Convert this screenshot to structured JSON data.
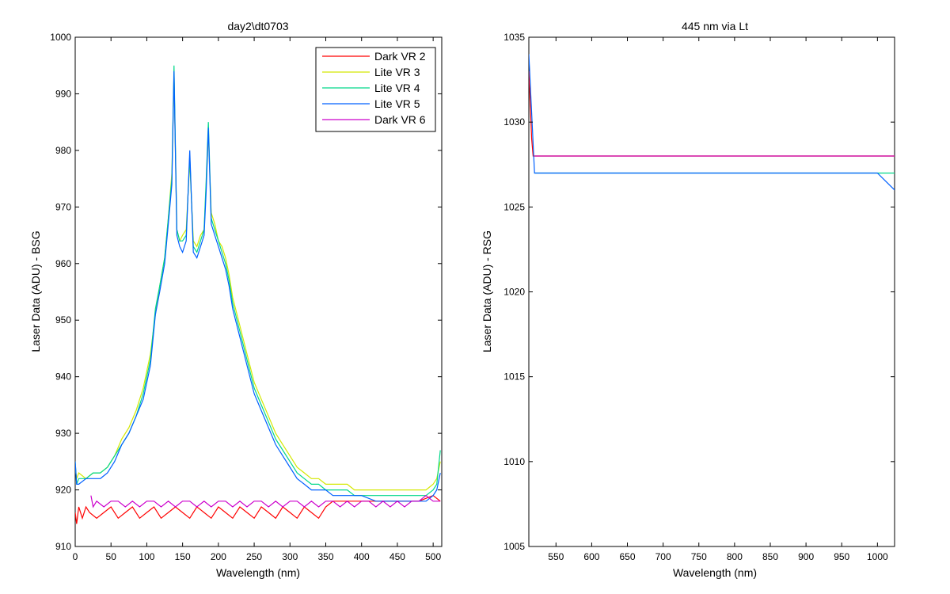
{
  "figure": {
    "background": "#ffffff"
  },
  "chart_data": [
    {
      "type": "line",
      "title": "day2\\dt0703",
      "xlabel": "Wavelength (nm)",
      "ylabel": "Laser Data (ADU) - BSG",
      "xlim": [
        0,
        512
      ],
      "ylim": [
        910,
        1000
      ],
      "xticks": [
        0,
        50,
        100,
        150,
        200,
        250,
        300,
        350,
        400,
        450,
        500
      ],
      "yticks": [
        910,
        920,
        930,
        940,
        950,
        960,
        970,
        980,
        990,
        1000
      ],
      "grid": false,
      "legend_position": "top-right",
      "series": [
        {
          "name": "Dark VR 2",
          "color": "#ff0000",
          "x": [
            0,
            2,
            5,
            10,
            15,
            20,
            30,
            40,
            50,
            60,
            70,
            80,
            90,
            100,
            110,
            120,
            130,
            140,
            150,
            160,
            170,
            180,
            190,
            200,
            210,
            220,
            230,
            240,
            250,
            260,
            270,
            280,
            290,
            300,
            310,
            320,
            330,
            340,
            350,
            360,
            380,
            400,
            420,
            440,
            460,
            480,
            500,
            510
          ],
          "y": [
            916,
            914,
            917,
            915,
            917,
            916,
            915,
            916,
            917,
            915,
            916,
            917,
            915,
            916,
            917,
            915,
            916,
            917,
            916,
            915,
            917,
            916,
            915,
            917,
            916,
            915,
            917,
            916,
            915,
            917,
            916,
            915,
            917,
            916,
            915,
            917,
            916,
            915,
            917,
            918,
            918,
            918,
            918,
            918,
            918,
            918,
            919,
            918
          ]
        },
        {
          "name": "Lite VR 3",
          "color": "#d4e800",
          "x": [
            0,
            2,
            5,
            15,
            25,
            35,
            45,
            55,
            65,
            75,
            85,
            95,
            105,
            112,
            118,
            125,
            130,
            135,
            138,
            142,
            146,
            150,
            155,
            160,
            165,
            170,
            175,
            180,
            183,
            186,
            190,
            195,
            200,
            205,
            210,
            215,
            220,
            230,
            240,
            250,
            260,
            270,
            280,
            290,
            300,
            310,
            320,
            330,
            340,
            350,
            360,
            370,
            380,
            390,
            400,
            420,
            440,
            460,
            480,
            490,
            500,
            505,
            510
          ],
          "y": [
            924,
            922,
            923,
            922,
            923,
            923,
            924,
            926,
            929,
            931,
            934,
            938,
            944,
            951,
            956,
            961,
            968,
            976,
            993,
            966,
            964,
            965,
            966,
            978,
            964,
            963,
            965,
            966,
            974,
            983,
            969,
            967,
            964,
            963,
            961,
            958,
            954,
            949,
            944,
            939,
            936,
            933,
            930,
            928,
            926,
            924,
            923,
            922,
            922,
            921,
            921,
            921,
            921,
            920,
            920,
            920,
            920,
            920,
            920,
            920,
            921,
            922,
            925
          ]
        },
        {
          "name": "Lite VR 4",
          "color": "#00d88a",
          "x": [
            0,
            2,
            5,
            15,
            25,
            35,
            45,
            55,
            65,
            75,
            85,
            95,
            105,
            112,
            118,
            125,
            130,
            135,
            138,
            142,
            146,
            150,
            155,
            160,
            165,
            170,
            175,
            180,
            183,
            186,
            190,
            195,
            200,
            205,
            210,
            215,
            220,
            230,
            240,
            250,
            260,
            270,
            280,
            290,
            300,
            310,
            320,
            330,
            340,
            350,
            360,
            370,
            380,
            390,
            400,
            420,
            440,
            460,
            480,
            490,
            500,
            505,
            510
          ],
          "y": [
            925,
            921,
            922,
            922,
            923,
            923,
            924,
            926,
            928,
            930,
            933,
            937,
            943,
            952,
            956,
            961,
            968,
            975,
            995,
            966,
            964,
            964,
            965,
            979,
            963,
            962,
            964,
            966,
            975,
            985,
            968,
            966,
            964,
            962,
            960,
            957,
            953,
            948,
            943,
            938,
            935,
            932,
            929,
            927,
            925,
            923,
            922,
            921,
            921,
            920,
            920,
            920,
            920,
            919,
            919,
            919,
            919,
            919,
            919,
            919,
            920,
            921,
            927
          ]
        },
        {
          "name": "Lite VR 5",
          "color": "#0060ff",
          "x": [
            0,
            2,
            5,
            15,
            25,
            35,
            45,
            55,
            65,
            75,
            85,
            95,
            105,
            112,
            118,
            125,
            130,
            135,
            138,
            142,
            146,
            150,
            155,
            160,
            165,
            170,
            175,
            180,
            183,
            186,
            190,
            195,
            200,
            205,
            210,
            215,
            220,
            230,
            240,
            250,
            260,
            270,
            280,
            290,
            300,
            310,
            320,
            330,
            340,
            350,
            360,
            370,
            380,
            390,
            400,
            420,
            440,
            460,
            480,
            490,
            500,
            505,
            510
          ],
          "y": [
            925,
            921,
            921,
            922,
            922,
            922,
            923,
            925,
            928,
            930,
            933,
            936,
            942,
            951,
            955,
            960,
            967,
            974,
            994,
            965,
            963,
            962,
            964,
            980,
            962,
            961,
            963,
            965,
            973,
            984,
            967,
            965,
            963,
            961,
            959,
            956,
            952,
            947,
            942,
            937,
            934,
            931,
            928,
            926,
            924,
            922,
            921,
            920,
            920,
            920,
            919,
            919,
            919,
            919,
            919,
            918,
            918,
            918,
            918,
            918,
            919,
            920,
            923
          ]
        },
        {
          "name": "Dark VR 6",
          "color": "#cc00cc",
          "x": [
            22,
            25,
            30,
            40,
            50,
            60,
            70,
            80,
            90,
            100,
            110,
            120,
            130,
            140,
            150,
            160,
            170,
            180,
            190,
            200,
            210,
            220,
            230,
            240,
            250,
            260,
            270,
            280,
            290,
            300,
            310,
            320,
            330,
            340,
            350,
            360,
            370,
            380,
            390,
            400,
            410,
            420,
            430,
            440,
            450,
            460,
            470,
            480,
            490,
            500,
            510
          ],
          "y": [
            919,
            917,
            918,
            917,
            918,
            918,
            917,
            918,
            917,
            918,
            918,
            917,
            918,
            917,
            918,
            918,
            917,
            918,
            917,
            918,
            918,
            917,
            918,
            917,
            918,
            918,
            917,
            918,
            917,
            918,
            918,
            917,
            918,
            917,
            918,
            918,
            917,
            918,
            917,
            918,
            918,
            917,
            918,
            917,
            918,
            917,
            918,
            918,
            919,
            918,
            918
          ]
        }
      ]
    },
    {
      "type": "line",
      "title": "445 nm via Lt",
      "xlabel": "Wavelength (nm)",
      "ylabel": "Laser Data (ADU) - RSG",
      "xlim": [
        512,
        1024
      ],
      "ylim": [
        1005,
        1035
      ],
      "xticks": [
        550,
        600,
        650,
        700,
        750,
        800,
        850,
        900,
        950,
        1000
      ],
      "yticks": [
        1005,
        1010,
        1015,
        1020,
        1025,
        1030,
        1035
      ],
      "grid": false,
      "series": [
        {
          "color": "#ff0000",
          "x": [
            512,
            514,
            516,
            518,
            520,
            540,
            560,
            580,
            600,
            620,
            640,
            660,
            680,
            700,
            720,
            740,
            760,
            780,
            800,
            820,
            840,
            860,
            880,
            900,
            920,
            940,
            960,
            980,
            1000,
            1024
          ],
          "y": [
            1033,
            1031,
            1029,
            1028,
            1028,
            1028,
            1028,
            1028,
            1028,
            1028,
            1028,
            1028,
            1028,
            1028,
            1028,
            1028,
            1028,
            1028,
            1028,
            1028,
            1028,
            1028,
            1028,
            1028,
            1028,
            1028,
            1028,
            1028,
            1028,
            1028
          ]
        },
        {
          "color": "#d4e800",
          "x": [
            520,
            540,
            560,
            580,
            600,
            620,
            640,
            660,
            680,
            700,
            720,
            740,
            760,
            780,
            800,
            820,
            840,
            860,
            880,
            900,
            920,
            940,
            960,
            980,
            1000,
            1024
          ],
          "y": [
            1028,
            1028,
            1028,
            1028,
            1028,
            1028,
            1028,
            1028,
            1028,
            1028,
            1028,
            1028,
            1028,
            1028,
            1028,
            1028,
            1028,
            1028,
            1028,
            1028,
            1028,
            1028,
            1028,
            1028,
            1028,
            1028
          ]
        },
        {
          "color": "#00d88a",
          "x": [
            520,
            540,
            560,
            580,
            600,
            620,
            640,
            660,
            680,
            700,
            720,
            740,
            760,
            780,
            800,
            820,
            840,
            860,
            880,
            900,
            920,
            940,
            960,
            980,
            1000,
            1024
          ],
          "y": [
            1027,
            1027,
            1027,
            1027,
            1027,
            1027,
            1027,
            1027,
            1027,
            1027,
            1027,
            1027,
            1027,
            1027,
            1027,
            1027,
            1027,
            1027,
            1027,
            1027,
            1027,
            1027,
            1027,
            1027,
            1027,
            1027
          ]
        },
        {
          "color": "#0060ff",
          "x": [
            512,
            520,
            540,
            560,
            580,
            600,
            620,
            640,
            660,
            680,
            700,
            720,
            740,
            760,
            780,
            800,
            820,
            840,
            860,
            880,
            900,
            920,
            940,
            960,
            980,
            1000,
            1024
          ],
          "y": [
            1034,
            1027,
            1027,
            1027,
            1027,
            1027,
            1027,
            1027,
            1027,
            1027,
            1027,
            1027,
            1027,
            1027,
            1027,
            1027,
            1027,
            1027,
            1027,
            1027,
            1027,
            1027,
            1027,
            1027,
            1027,
            1027,
            1026
          ]
        },
        {
          "color": "#cc00cc",
          "x": [
            520,
            540,
            560,
            580,
            600,
            620,
            640,
            660,
            680,
            700,
            720,
            740,
            760,
            780,
            800,
            820,
            840,
            860,
            880,
            900,
            920,
            940,
            960,
            980,
            1000,
            1024
          ],
          "y": [
            1028,
            1028,
            1028,
            1028,
            1028,
            1028,
            1028,
            1028,
            1028,
            1028,
            1028,
            1028,
            1028,
            1028,
            1028,
            1028,
            1028,
            1028,
            1028,
            1028,
            1028,
            1028,
            1028,
            1028,
            1028,
            1028
          ]
        }
      ]
    }
  ]
}
